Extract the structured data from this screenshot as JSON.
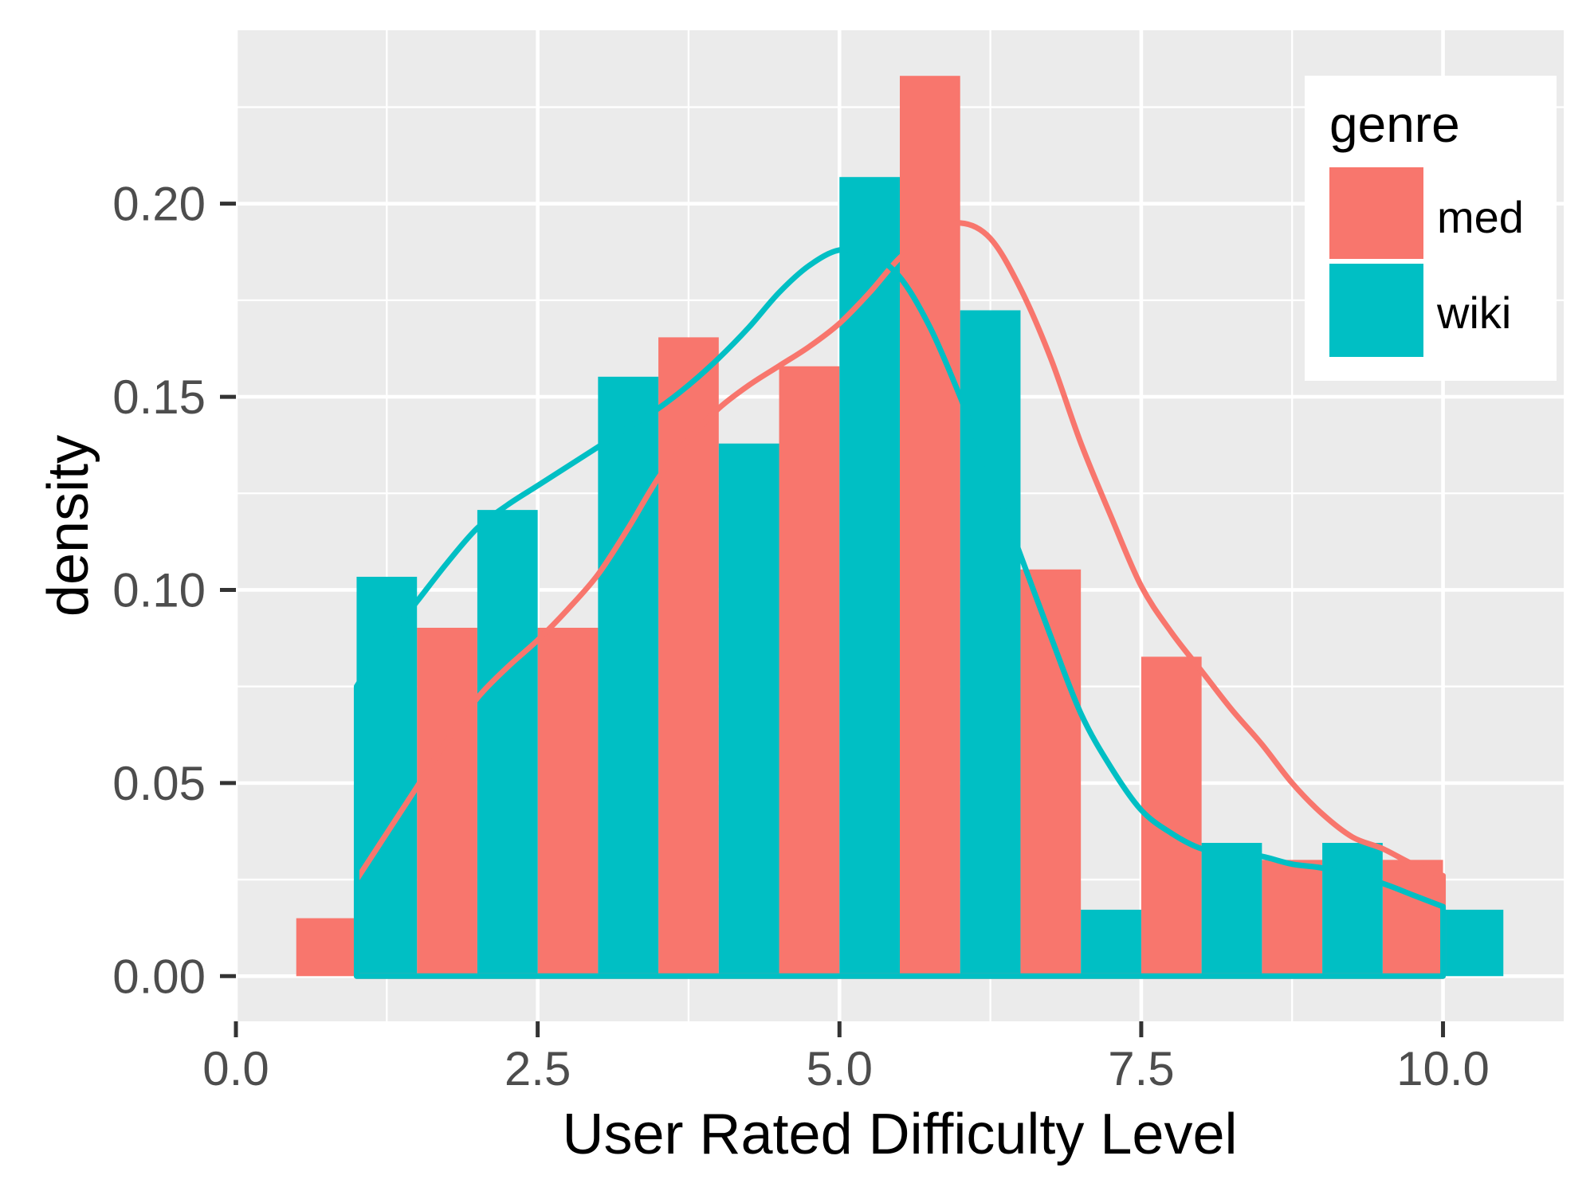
{
  "chart_data": {
    "type": "bar",
    "title": "",
    "xlabel": "User Rated Difficulty Level",
    "ylabel": "density",
    "xlim": [
      0,
      11
    ],
    "ylim": [
      -0.0117,
      0.2449
    ],
    "x_ticks": [
      0,
      2.5,
      5,
      7.5,
      10
    ],
    "x_tick_labels": [
      "0.0",
      "2.5",
      "5.0",
      "7.5",
      "10.0"
    ],
    "x_minor_ticks": [
      1.25,
      3.75,
      6.25,
      8.75
    ],
    "y_ticks": [
      0,
      0.05,
      0.1,
      0.15,
      0.2
    ],
    "y_tick_labels": [
      "0.00",
      "0.05",
      "0.10",
      "0.15",
      "0.20"
    ],
    "y_minor_ticks": [
      0.025,
      0.075,
      0.125,
      0.175,
      0.225
    ],
    "grid": true,
    "panel_color": "#EBEBEB",
    "legend": {
      "title": "genre",
      "position": "top-right"
    },
    "bins": [
      1,
      2,
      3,
      4,
      5,
      6,
      7,
      8,
      9,
      10
    ],
    "bin_width": 1,
    "series": [
      {
        "name": "med",
        "color": "#F8766D",
        "values": [
          0.015,
          0.0902,
          0.0902,
          0.1654,
          0.1579,
          0.2331,
          0.1053,
          0.0827,
          0.0301,
          0.0301
        ],
        "density_x": [
          1.0,
          1.25,
          1.5,
          1.75,
          2.0,
          2.25,
          2.5,
          2.75,
          3.0,
          3.25,
          3.5,
          3.75,
          4.0,
          4.25,
          4.5,
          4.75,
          5.0,
          5.25,
          5.5,
          5.75,
          6.0,
          6.25,
          6.5,
          6.75,
          7.0,
          7.25,
          7.5,
          7.75,
          8.0,
          8.25,
          8.5,
          8.75,
          9.0,
          9.25,
          9.5,
          9.75,
          10.0
        ],
        "density_y": [
          0.025,
          0.037,
          0.049,
          0.061,
          0.072,
          0.08,
          0.087,
          0.095,
          0.104,
          0.116,
          0.129,
          0.139,
          0.147,
          0.153,
          0.158,
          0.163,
          0.169,
          0.177,
          0.186,
          0.192,
          0.195,
          0.191,
          0.178,
          0.16,
          0.138,
          0.119,
          0.101,
          0.089,
          0.079,
          0.069,
          0.06,
          0.05,
          0.042,
          0.036,
          0.033,
          0.029,
          0.026
        ]
      },
      {
        "name": "wiki",
        "color": "#00BFC4",
        "values": [
          0.1034,
          0.1207,
          0.1552,
          0.1379,
          0.2069,
          0.1724,
          0.0172,
          0.0345,
          0.0345,
          0.0172
        ],
        "density_x": [
          1.0,
          1.25,
          1.5,
          1.75,
          2.0,
          2.25,
          2.5,
          2.75,
          3.0,
          3.25,
          3.5,
          3.75,
          4.0,
          4.25,
          4.5,
          4.75,
          5.0,
          5.25,
          5.5,
          5.75,
          6.0,
          6.25,
          6.5,
          6.75,
          7.0,
          7.25,
          7.5,
          7.75,
          8.0,
          8.25,
          8.5,
          8.75,
          9.0,
          9.25,
          9.5,
          9.75,
          10.0
        ],
        "density_y": [
          0.075,
          0.087,
          0.097,
          0.107,
          0.116,
          0.122,
          0.127,
          0.132,
          0.137,
          0.142,
          0.147,
          0.153,
          0.16,
          0.168,
          0.177,
          0.184,
          0.188,
          0.187,
          0.181,
          0.168,
          0.15,
          0.13,
          0.109,
          0.088,
          0.068,
          0.054,
          0.043,
          0.037,
          0.033,
          0.032,
          0.031,
          0.029,
          0.028,
          0.026,
          0.024,
          0.021,
          0.018
        ]
      }
    ]
  }
}
